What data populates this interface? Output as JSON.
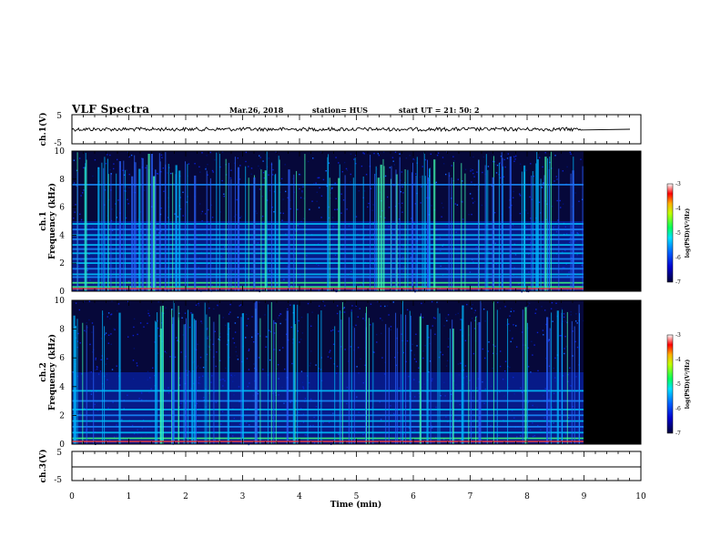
{
  "header": {
    "title": "VLF Spectra",
    "date": "Mar.26, 2018",
    "station": "station= HUS",
    "start": "start  UT  =   21: 50: 2"
  },
  "chart_data": [
    {
      "type": "line",
      "ylabel": "ch.1(V)",
      "ylim": [
        -5,
        5
      ],
      "yticks": [
        "5",
        "-5"
      ],
      "description": "waveform amplitude near 0 V with small noise band until t≈9 min, flat afterwards"
    },
    {
      "type": "heatmap",
      "ylabel_line1": "ch.1",
      "ylabel_line2": "Frequency (kHz)",
      "ylim": [
        0,
        10
      ],
      "yticks": [
        "0",
        "2",
        "4",
        "6",
        "8",
        "10"
      ],
      "xlim": [
        0,
        10
      ],
      "data_end_min": 9.0,
      "horizontal_bands_khz": [
        0.3,
        0.6,
        1.0,
        1.2,
        1.6,
        2.0,
        2.3,
        2.7,
        3.0,
        3.3,
        3.7,
        4.0,
        4.4,
        4.8,
        7.6
      ],
      "colorbar": {
        "label": "log(PSD)(V²/Hz)",
        "range": [
          -7,
          -3
        ],
        "ticks": [
          "-3",
          "-4",
          "-5",
          "-6",
          "-7"
        ]
      }
    },
    {
      "type": "heatmap",
      "ylabel_line1": "ch.2",
      "ylabel_line2": "Frequency (kHz)",
      "ylim": [
        0,
        10
      ],
      "yticks": [
        "0",
        "2",
        "4",
        "6",
        "8",
        "10"
      ],
      "xlim": [
        0,
        10
      ],
      "data_end_min": 9.0,
      "horizontal_bands_khz": [
        0.4,
        0.8,
        1.2,
        1.6,
        2.0,
        2.4,
        3.0,
        3.7
      ],
      "colorbar": {
        "label": "log(PSD)(V²/Hz)",
        "range": [
          -7,
          -3
        ],
        "ticks": [
          "-3",
          "-4",
          "-5",
          "-6",
          "-7"
        ]
      }
    },
    {
      "type": "line",
      "ylabel": "ch.3(V)",
      "ylim": [
        -5,
        5
      ],
      "yticks": [
        "5",
        "-5"
      ],
      "description": "flat line near -1 V across full window"
    }
  ],
  "xaxis": {
    "label": "Time (min)",
    "ticks": [
      "0",
      "1",
      "2",
      "3",
      "4",
      "5",
      "6",
      "7",
      "8",
      "9",
      "10"
    ]
  },
  "colors": {
    "background": "#ffffff",
    "no_data": "#000000",
    "colormap": [
      "#000000",
      "#00008b",
      "#0000ff",
      "#0080ff",
      "#00ffff",
      "#00ff80",
      "#80ff00",
      "#ffff00",
      "#ff8000",
      "#ff0000",
      "#ffffff"
    ]
  }
}
